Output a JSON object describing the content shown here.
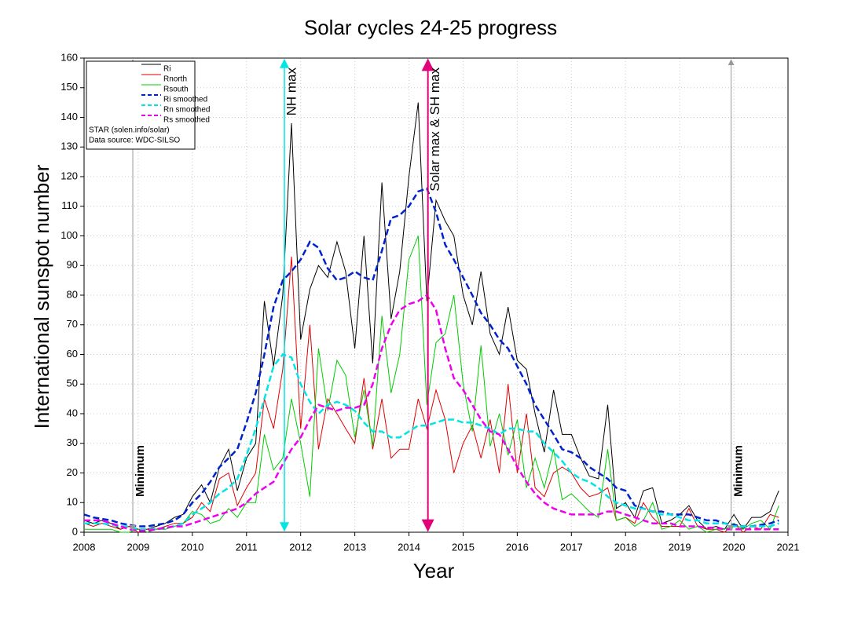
{
  "chart_data": {
    "type": "line",
    "title": "Solar cycles 24-25 progress",
    "xlabel": "Year",
    "ylabel": "International sunspot number",
    "xlim": [
      2008,
      2021
    ],
    "ylim": [
      0,
      160
    ],
    "xticks": [
      2008,
      2009,
      2010,
      2011,
      2012,
      2013,
      2014,
      2015,
      2016,
      2017,
      2018,
      2019,
      2020,
      2021
    ],
    "yticks": [
      0,
      10,
      20,
      30,
      40,
      50,
      60,
      70,
      80,
      90,
      100,
      110,
      120,
      130,
      140,
      150,
      160
    ],
    "grid": true,
    "legend": "upper left",
    "legend_notes": [
      "STAR (solen.info/solar)",
      "Data source: WDC-SILSO"
    ],
    "annotations": [
      {
        "text": "Minimum",
        "x": 2008.9,
        "color": "#999999"
      },
      {
        "text": "NH max",
        "x": 2011.7,
        "color": "#00e5e5"
      },
      {
        "text": "Solar max & SH max",
        "x": 2014.35,
        "color": "#e0007a"
      },
      {
        "text": "Minimum",
        "x": 2019.95,
        "color": "#999999"
      }
    ],
    "x": [
      2008,
      2008.17,
      2008.33,
      2008.5,
      2008.67,
      2008.83,
      2009,
      2009.17,
      2009.33,
      2009.5,
      2009.67,
      2009.83,
      2010,
      2010.17,
      2010.33,
      2010.5,
      2010.67,
      2010.83,
      2011,
      2011.17,
      2011.33,
      2011.5,
      2011.67,
      2011.83,
      2012,
      2012.17,
      2012.33,
      2012.5,
      2012.67,
      2012.83,
      2013,
      2013.17,
      2013.33,
      2013.5,
      2013.67,
      2013.83,
      2014,
      2014.17,
      2014.33,
      2014.5,
      2014.67,
      2014.83,
      2015,
      2015.17,
      2015.33,
      2015.5,
      2015.67,
      2015.83,
      2016,
      2016.17,
      2016.33,
      2016.5,
      2016.67,
      2016.83,
      2017,
      2017.17,
      2017.33,
      2017.5,
      2017.67,
      2017.83,
      2018,
      2018.17,
      2018.33,
      2018.5,
      2018.67,
      2018.83,
      2019,
      2019.17,
      2019.33,
      2019.5,
      2019.67,
      2019.83,
      2020,
      2020.17,
      2020.33,
      2020.5,
      2020.67,
      2020.83
    ],
    "series": [
      {
        "name": "Ri",
        "color": "#000000",
        "dashed": false,
        "values": [
          4,
          3,
          4,
          3,
          1,
          2,
          1,
          1,
          2,
          3,
          5,
          6,
          12,
          16,
          10,
          22,
          28,
          14,
          25,
          30,
          78,
          56,
          80,
          138,
          65,
          82,
          90,
          86,
          98,
          88,
          62,
          100,
          57,
          118,
          72,
          88,
          120,
          145,
          78,
          112,
          105,
          100,
          80,
          70,
          88,
          67,
          60,
          76,
          58,
          55,
          40,
          27,
          48,
          33,
          33,
          25,
          19,
          18,
          43,
          8,
          10,
          5,
          14,
          15,
          3,
          4,
          6,
          9,
          4,
          1,
          2,
          1,
          6,
          1,
          5,
          5,
          7,
          14
        ]
      },
      {
        "name": "Rnorth",
        "color": "#e00000",
        "dashed": false,
        "values": [
          3,
          2,
          3,
          2,
          1,
          2,
          0,
          1,
          1,
          2,
          3,
          3,
          5,
          10,
          7,
          18,
          20,
          9,
          15,
          20,
          45,
          35,
          55,
          93,
          35,
          70,
          28,
          45,
          40,
          35,
          30,
          52,
          28,
          45,
          25,
          28,
          28,
          45,
          35,
          48,
          38,
          20,
          30,
          36,
          25,
          38,
          20,
          50,
          20,
          40,
          15,
          12,
          20,
          22,
          20,
          15,
          12,
          13,
          15,
          4,
          5,
          3,
          10,
          5,
          2,
          2,
          2,
          8,
          2,
          1,
          1,
          0,
          3,
          0,
          2,
          1,
          6,
          5
        ]
      },
      {
        "name": "Rsouth",
        "color": "#00cc00",
        "dashed": false,
        "values": [
          1,
          1,
          1,
          1,
          0,
          0,
          1,
          0,
          1,
          1,
          2,
          3,
          7,
          6,
          3,
          4,
          8,
          5,
          10,
          10,
          33,
          21,
          25,
          45,
          30,
          12,
          62,
          41,
          58,
          53,
          32,
          48,
          29,
          73,
          47,
          60,
          92,
          100,
          43,
          64,
          67,
          80,
          50,
          34,
          63,
          29,
          40,
          26,
          38,
          15,
          25,
          15,
          28,
          11,
          13,
          10,
          7,
          5,
          28,
          4,
          5,
          2,
          4,
          10,
          1,
          2,
          4,
          1,
          2,
          0,
          1,
          1,
          3,
          1,
          3,
          4,
          1,
          9
        ]
      },
      {
        "name": "Ri smoothed",
        "color": "#0022cc",
        "dashed": true,
        "values": [
          6,
          5,
          4.5,
          4,
          3,
          2.5,
          2,
          2,
          2.5,
          3,
          4,
          6,
          10,
          13,
          17,
          22,
          25,
          28,
          37,
          47,
          60,
          76,
          85,
          88,
          92,
          98,
          96,
          89,
          85,
          86,
          88,
          86,
          85,
          95,
          106,
          107,
          110,
          115,
          116,
          108,
          97,
          92,
          86,
          80,
          74,
          70,
          65,
          62,
          56,
          50,
          43,
          38,
          33,
          28,
          27,
          25,
          22,
          20,
          18,
          15,
          14,
          9,
          8,
          7,
          7,
          6,
          6,
          6,
          5,
          4,
          4,
          3,
          2.5,
          2,
          2,
          2.5,
          3,
          4
        ]
      },
      {
        "name": "Rn smoothed",
        "color": "#00e5e5",
        "dashed": true,
        "values": [
          3,
          3,
          3,
          2.5,
          2,
          2,
          1,
          1,
          1,
          1.5,
          2,
          3,
          6,
          8,
          10,
          13,
          15,
          18,
          26,
          35,
          45,
          56,
          60,
          59,
          50,
          44,
          40,
          43,
          44,
          43,
          41,
          37,
          34,
          34,
          32,
          32,
          34,
          36,
          36,
          37,
          38,
          38,
          37,
          37,
          36,
          35,
          33,
          35,
          35,
          34,
          34,
          30,
          27,
          24,
          20,
          18,
          17,
          15,
          12,
          10,
          9,
          8,
          8,
          7,
          6,
          6,
          5,
          4,
          4,
          3,
          3,
          3,
          2,
          2,
          2,
          2,
          2,
          3
        ]
      },
      {
        "name": "Rs smoothed",
        "color": "#ee00ee",
        "dashed": true,
        "values": [
          4,
          4,
          4,
          3,
          2,
          1,
          0.5,
          0.5,
          1,
          1.5,
          2,
          2,
          3,
          4,
          5,
          6,
          7,
          8,
          10,
          13,
          15,
          17,
          23,
          28,
          32,
          38,
          43,
          42,
          41,
          42,
          42,
          43,
          50,
          62,
          70,
          75,
          77,
          78,
          80,
          75,
          62,
          52,
          48,
          43,
          38,
          34,
          33,
          28,
          22,
          17,
          13,
          10,
          8,
          7,
          6,
          6,
          6,
          6,
          7,
          7,
          6,
          5,
          4,
          3,
          3,
          3,
          2,
          2,
          2,
          1.5,
          1.5,
          1,
          1,
          1,
          1,
          1,
          1,
          1
        ]
      }
    ]
  }
}
